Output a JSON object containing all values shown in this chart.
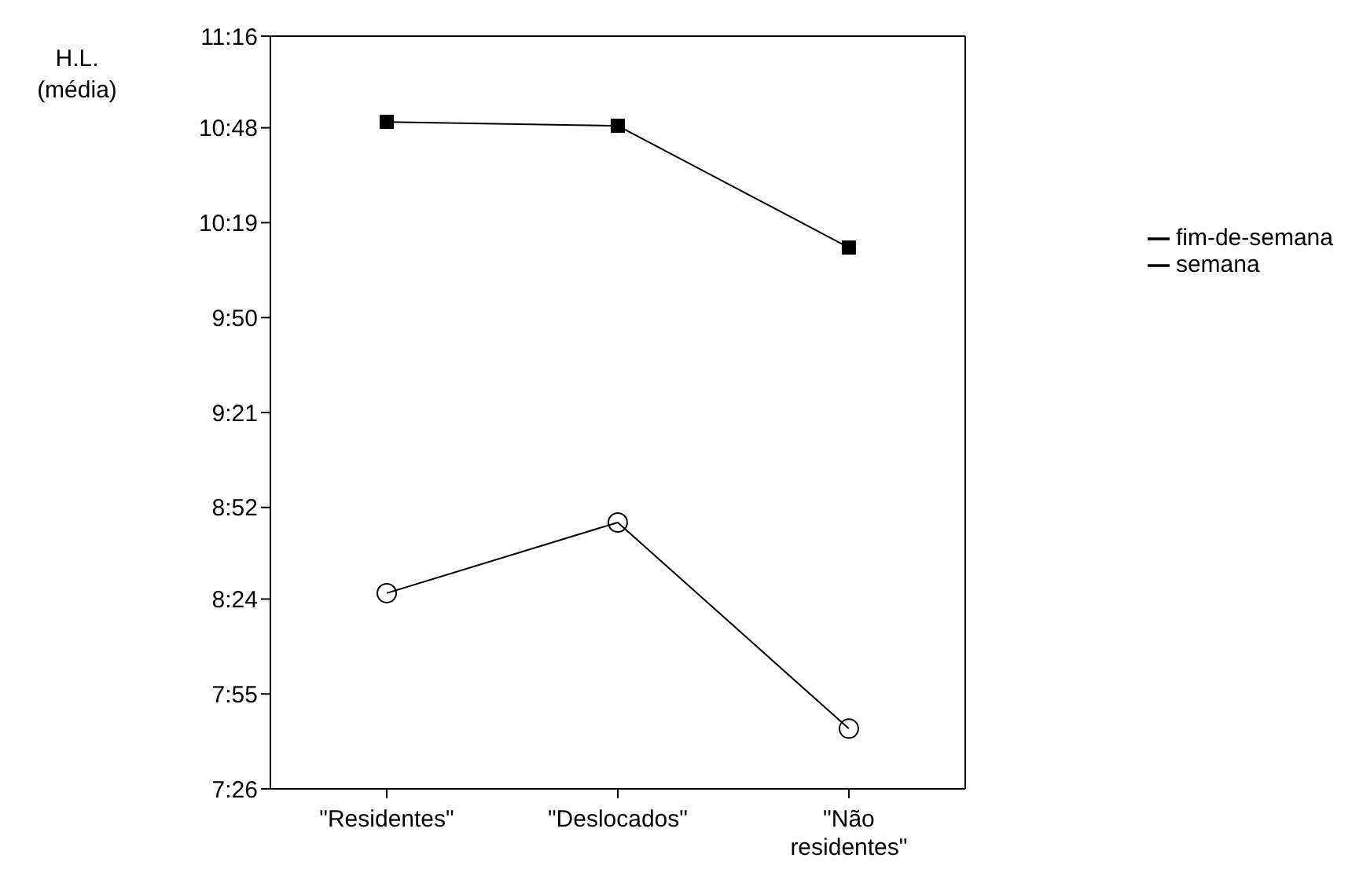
{
  "chart_data": {
    "type": "line",
    "ylabel": "H.L. (média)",
    "categories": [
      "\"Residentes\"",
      "\"Deslocados\"",
      "\"Não residentes\""
    ],
    "series": [
      {
        "name": "fim-de-semana",
        "color": "#000000",
        "marker": "square",
        "values": [
          10.83,
          10.81,
          10.19
        ]
      },
      {
        "name": "semana",
        "color": "#000000",
        "marker": "circle",
        "values": [
          8.43,
          8.79,
          7.74
        ]
      }
    ],
    "ylim": [
      7.4333,
      11.2667
    ],
    "yticks": [
      {
        "value": 7.4333,
        "label": "7:26"
      },
      {
        "value": 7.9167,
        "label": "7:55"
      },
      {
        "value": 8.4,
        "label": "8:24"
      },
      {
        "value": 8.8667,
        "label": "8:52"
      },
      {
        "value": 9.35,
        "label": "9:21"
      },
      {
        "value": 9.8333,
        "label": "9:50"
      },
      {
        "value": 10.3167,
        "label": "10:19"
      },
      {
        "value": 10.8,
        "label": "10:48"
      },
      {
        "value": 11.2667,
        "label": "11:16"
      }
    ],
    "grid": false,
    "legend": "right"
  }
}
